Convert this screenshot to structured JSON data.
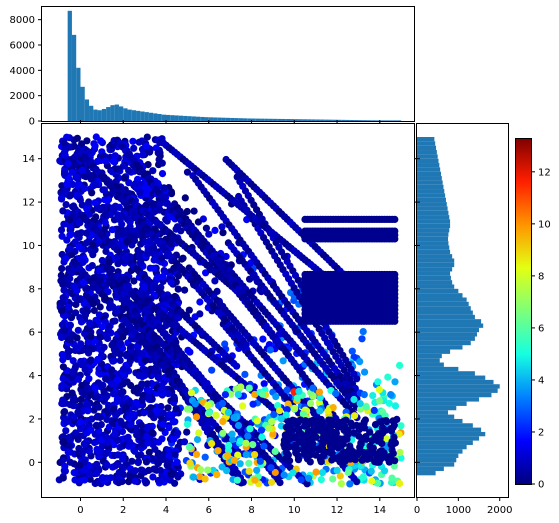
{
  "chart_data": [
    {
      "type": "scatter",
      "panel": "main",
      "title": "",
      "xlabel": "",
      "ylabel": "",
      "xlim": [
        -1.8,
        15.6
      ],
      "ylim": [
        -1.6,
        15.6
      ],
      "xticks": [
        0,
        2,
        4,
        6,
        8,
        10,
        12,
        14
      ],
      "yticks": [
        0,
        2,
        4,
        6,
        8,
        10,
        12,
        14
      ],
      "colormap": [
        "#00007f",
        "#0000ff",
        "#0080ff",
        "#15ffe1",
        "#7dff7a",
        "#e4ff13",
        "#ff9400",
        "#ff1e00",
        "#7f0000"
      ],
      "color_scale": [
        0,
        13.3
      ],
      "grid": false,
      "description_points": "dense scatter of points colored by value; low values (dark navy) dominate upper-left region, higher values appear near lower right",
      "clusters": [
        {
          "region": "upper-left band",
          "x": [
            -1,
            6
          ],
          "y": [
            -1,
            15
          ],
          "value_range": [
            0,
            3
          ]
        },
        {
          "region": "diagonal streaks",
          "x": [
            4,
            12
          ],
          "y": [
            3,
            12
          ],
          "value_range": [
            0,
            2
          ]
        },
        {
          "region": "lower right",
          "x": [
            6,
            15
          ],
          "y": [
            -1,
            4
          ],
          "value_range": [
            2,
            13
          ]
        },
        {
          "region": "upper right bars",
          "x": [
            11,
            15
          ],
          "y": [
            6,
            12
          ],
          "value_range": [
            0,
            1
          ]
        }
      ]
    },
    {
      "type": "bar",
      "panel": "top-histogram",
      "xlim": [
        -1.8,
        15.6
      ],
      "ylim": [
        0,
        9000
      ],
      "yticks": [
        0,
        2000,
        4000,
        6000,
        8000
      ],
      "bin_width": 0.2,
      "x_start": -0.6,
      "values": [
        8700,
        6800,
        4200,
        2700,
        1700,
        1200,
        900,
        850,
        950,
        1100,
        1250,
        1300,
        1150,
        1000,
        900,
        850,
        800,
        750,
        700,
        650,
        600,
        550,
        500,
        480,
        460,
        440,
        420,
        400,
        380,
        360,
        340,
        320,
        300,
        290,
        280,
        270,
        260,
        250,
        240,
        230,
        220,
        210,
        200,
        195,
        190,
        185,
        180,
        175,
        170,
        165,
        160,
        155,
        150,
        145,
        140,
        135,
        130,
        125,
        120,
        115,
        110,
        105,
        100,
        95,
        90,
        85,
        80,
        75,
        70,
        65,
        60,
        55,
        50,
        50,
        50,
        50,
        50,
        50
      ]
    },
    {
      "type": "bar",
      "panel": "right-histogram",
      "orientation": "horizontal",
      "xlim": [
        0,
        2200
      ],
      "xticks": [
        0,
        1000,
        2000
      ],
      "ylim": [
        -1.6,
        15.6
      ],
      "bin_width": 0.2,
      "y_start": -0.6,
      "values": [
        450,
        650,
        900,
        950,
        1000,
        1100,
        1200,
        1350,
        1500,
        1650,
        1550,
        1350,
        1100,
        900,
        750,
        950,
        1200,
        1500,
        1800,
        1950,
        2000,
        1850,
        1650,
        1400,
        1000,
        650,
        550,
        600,
        800,
        1100,
        1300,
        1400,
        1450,
        1500,
        1600,
        1550,
        1400,
        1350,
        1300,
        1250,
        1200,
        1100,
        1000,
        900,
        850,
        820,
        800,
        850,
        900,
        900,
        850,
        800,
        780,
        760,
        750,
        760,
        780,
        800,
        800,
        780,
        760,
        740,
        720,
        700,
        680,
        660,
        640,
        620,
        600,
        580,
        560,
        540,
        520,
        500,
        480,
        460,
        440,
        420
      ]
    }
  ],
  "colorbar": {
    "ticks": [
      0,
      2,
      4,
      6,
      8,
      10,
      12
    ],
    "range": [
      0,
      13.3
    ]
  }
}
